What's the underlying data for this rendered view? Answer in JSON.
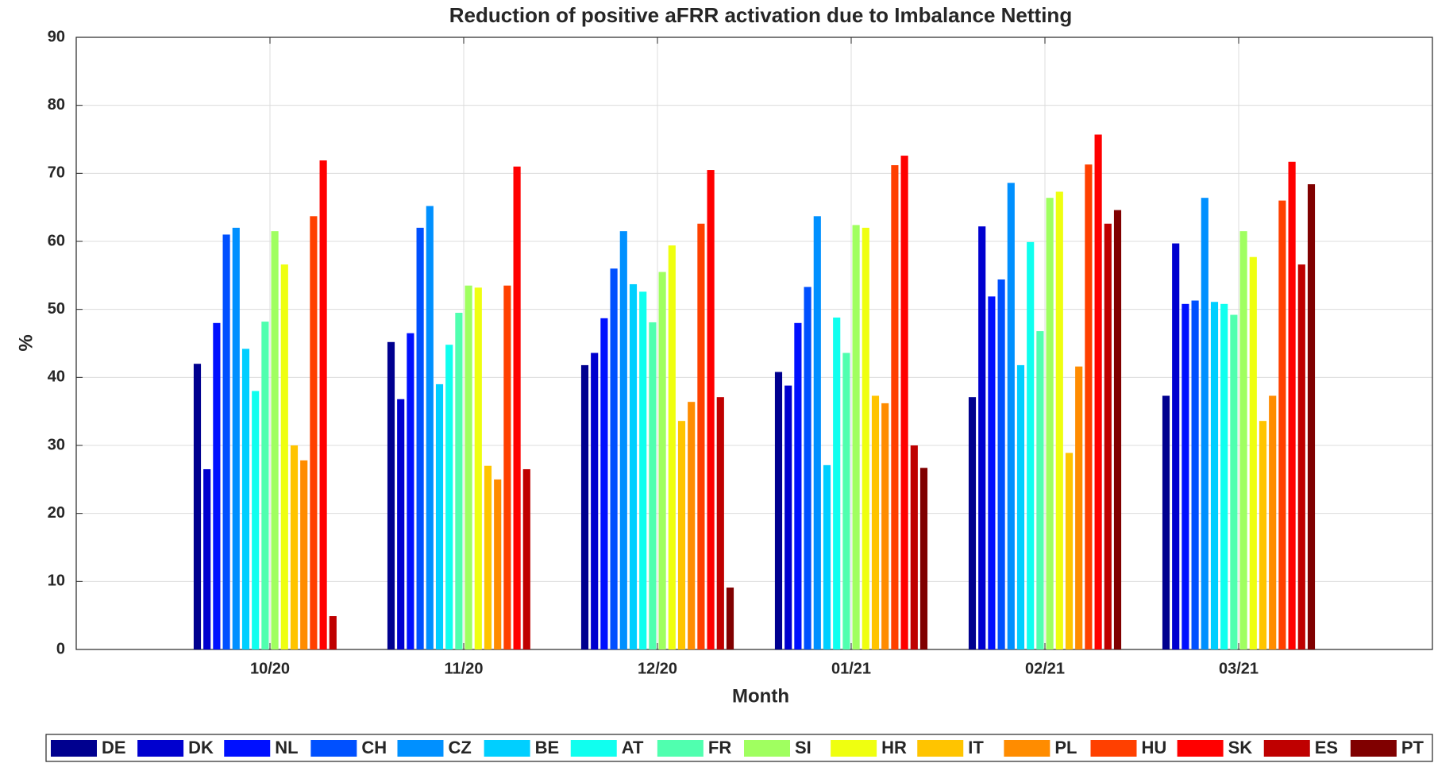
{
  "chart_data": {
    "type": "bar",
    "title": "Reduction of positive aFRR activation due to Imbalance Netting",
    "xlabel": "Month",
    "ylabel": "%",
    "categories": [
      "10/20",
      "11/20",
      "12/20",
      "01/21",
      "02/21",
      "03/21"
    ],
    "ylim": [
      0,
      90
    ],
    "yticks": [
      0,
      10,
      20,
      30,
      40,
      50,
      60,
      70,
      80,
      90
    ],
    "grid": true,
    "legend": "bottom",
    "series": [
      {
        "name": "DE",
        "color": "#00008f",
        "values": [
          42,
          45.2,
          41.8,
          40.8,
          37.1,
          37.3
        ]
      },
      {
        "name": "DK",
        "color": "#0000cf",
        "values": [
          26.5,
          36.8,
          43.6,
          38.8,
          62.2,
          59.7
        ]
      },
      {
        "name": "NL",
        "color": "#0010ff",
        "values": [
          48,
          46.5,
          48.7,
          48,
          51.9,
          50.8
        ]
      },
      {
        "name": "CH",
        "color": "#0050ff",
        "values": [
          61,
          62,
          56,
          53.3,
          54.4,
          51.3
        ]
      },
      {
        "name": "CZ",
        "color": "#0090ff",
        "values": [
          62,
          65.2,
          61.5,
          63.7,
          68.6,
          66.4
        ]
      },
      {
        "name": "BE",
        "color": "#00cfff",
        "values": [
          44.2,
          39,
          53.7,
          27.1,
          41.8,
          51.1
        ]
      },
      {
        "name": "AT",
        "color": "#10ffef",
        "values": [
          38,
          44.8,
          52.6,
          48.8,
          59.9,
          50.8
        ]
      },
      {
        "name": "FR",
        "color": "#50ffaf",
        "values": [
          48.2,
          49.5,
          48.1,
          43.6,
          46.8,
          49.2
        ]
      },
      {
        "name": "SI",
        "color": "#a0ff60",
        "values": [
          61.5,
          53.5,
          55.5,
          62.4,
          66.4,
          61.5
        ]
      },
      {
        "name": "HR",
        "color": "#efff10",
        "values": [
          56.6,
          53.2,
          59.4,
          62,
          67.3,
          57.7
        ]
      },
      {
        "name": "IT",
        "color": "#ffc400",
        "values": [
          30,
          27,
          33.6,
          37.3,
          28.9,
          33.6
        ]
      },
      {
        "name": "PL",
        "color": "#ff8c00",
        "values": [
          27.8,
          25,
          36.4,
          36.2,
          41.6,
          37.3
        ]
      },
      {
        "name": "HU",
        "color": "#ff4000",
        "values": [
          63.7,
          53.5,
          62.6,
          71.2,
          71.3,
          66
        ]
      },
      {
        "name": "SK",
        "color": "#ff0000",
        "values": [
          71.9,
          71,
          70.5,
          72.6,
          75.7,
          71.7
        ]
      },
      {
        "name": "ES",
        "color": "#bf0000",
        "values": [
          4.9,
          26.5,
          37.1,
          30,
          62.6,
          56.6
        ]
      },
      {
        "name": "PT",
        "color": "#800000",
        "values": [
          null,
          null,
          9.1,
          26.7,
          64.6,
          68.4
        ]
      }
    ]
  }
}
